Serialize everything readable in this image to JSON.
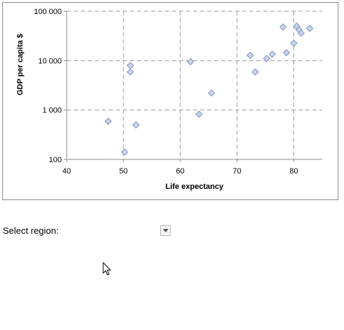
{
  "chart_data": {
    "type": "scatter",
    "xlabel": "Life expectancy",
    "ylabel": "GDP per capita $",
    "xlim": [
      40,
      85
    ],
    "ylim": [
      100,
      100000
    ],
    "y_scale": "log",
    "x_ticks": [
      40,
      50,
      60,
      70,
      80
    ],
    "x_tick_labels": [
      "40",
      "50",
      "60",
      "70",
      "80"
    ],
    "y_ticks": [
      100,
      1000,
      10000,
      100000
    ],
    "y_tick_labels": [
      "100",
      "1 000",
      "10 000",
      "100 000"
    ],
    "grid": true,
    "legend": "none",
    "marker": "diamond",
    "marker_color": "#c9d3ea",
    "marker_edge_color": "#7f94c2",
    "points": [
      {
        "x": 47.3,
        "y": 590
      },
      {
        "x": 50.2,
        "y": 140
      },
      {
        "x": 51.2,
        "y": 8000
      },
      {
        "x": 51.2,
        "y": 5900
      },
      {
        "x": 52.2,
        "y": 500
      },
      {
        "x": 61.8,
        "y": 9500
      },
      {
        "x": 63.3,
        "y": 820
      },
      {
        "x": 65.5,
        "y": 2200
      },
      {
        "x": 72.3,
        "y": 12800
      },
      {
        "x": 73.2,
        "y": 5900
      },
      {
        "x": 75.2,
        "y": 11000
      },
      {
        "x": 76.2,
        "y": 13500
      },
      {
        "x": 78.1,
        "y": 48000
      },
      {
        "x": 78.7,
        "y": 14500
      },
      {
        "x": 80.0,
        "y": 22500
      },
      {
        "x": 80.5,
        "y": 50000
      },
      {
        "x": 80.9,
        "y": 42000
      },
      {
        "x": 81.3,
        "y": 36000
      },
      {
        "x": 82.8,
        "y": 45000
      }
    ]
  },
  "controls": {
    "select_label": "Select region:",
    "dropdown_value": ""
  },
  "icons": {
    "dropdown": "chevron-down-icon",
    "cursor": "mouse-pointer-icon"
  }
}
